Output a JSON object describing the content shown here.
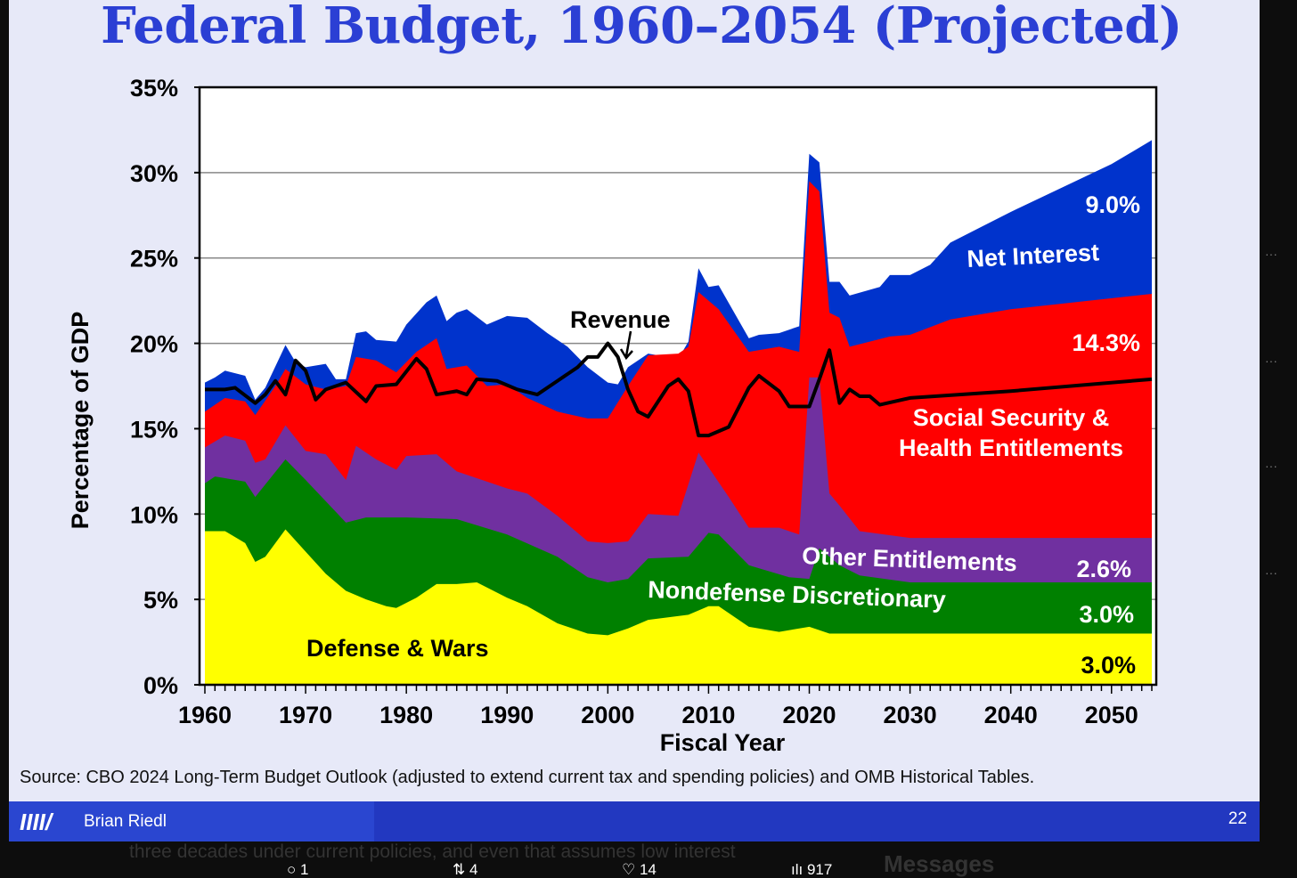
{
  "slide": {
    "title": "Federal Budget, 1960–2054 (Projected)",
    "source": "Source: CBO 2024 Long-Term Budget Outlook (adjusted to extend current tax and spending policies) and OMB Historical Tables.",
    "footer_logo": "IIII/",
    "footer_author": "Brian Riedl",
    "page_number": "22"
  },
  "tweet": {
    "text_fragment": "three decades under current policies, and even that assumes low interest",
    "reply_count": "1",
    "retweet_count": "4",
    "like_count": "14",
    "view_count": "917",
    "messages_label": "Messages"
  },
  "chart_data": {
    "type": "area",
    "stacked": true,
    "title": "Federal Budget, 1960–2054 (Projected)",
    "xlabel": "Fiscal Year",
    "ylabel": "Percentage of GDP",
    "xlim": [
      1960,
      2054
    ],
    "ylim": [
      0,
      35
    ],
    "yticks": [
      "0%",
      "5%",
      "10%",
      "15%",
      "20%",
      "25%",
      "30%",
      "35%"
    ],
    "ytick_values": [
      0,
      5,
      10,
      15,
      20,
      25,
      30,
      35
    ],
    "xticks": [
      "1960",
      "1970",
      "1980",
      "1990",
      "2000",
      "2010",
      "2020",
      "2030",
      "2040",
      "2050"
    ],
    "xtick_values": [
      1960,
      1970,
      1980,
      1990,
      2000,
      2010,
      2020,
      2030,
      2040,
      2050
    ],
    "grid": true,
    "series": [
      {
        "name": "Net Interest",
        "color": "#0033cc",
        "end_label": "9.0%",
        "cumulative_top": {
          "x": [
            1960,
            1961,
            1962,
            1964,
            1965,
            1966,
            1968,
            1969,
            1970,
            1972,
            1973,
            1974,
            1975,
            1976,
            1977,
            1979,
            1980,
            1982,
            1983,
            1984,
            1985,
            1986,
            1988,
            1990,
            1992,
            1994,
            1996,
            1998,
            2000,
            2001,
            2002,
            2004,
            2007,
            2008,
            2009,
            2010,
            2011,
            2014,
            2015,
            2017,
            2019,
            2020,
            2021,
            2022,
            2023,
            2024,
            2027,
            2028,
            2030,
            2032,
            2034,
            2040,
            2050,
            2054
          ],
          "y": [
            17.7,
            18.0,
            18.4,
            18.1,
            16.7,
            17.4,
            19.9,
            18.9,
            18.6,
            18.8,
            17.9,
            17.9,
            20.6,
            20.7,
            20.2,
            20.1,
            21.1,
            22.4,
            22.8,
            21.3,
            21.8,
            22.0,
            21.1,
            21.6,
            21.5,
            20.6,
            19.8,
            18.6,
            17.7,
            17.6,
            18.6,
            19.4,
            19.1,
            20.1,
            24.4,
            23.3,
            23.4,
            20.3,
            20.5,
            20.6,
            21.0,
            31.1,
            30.6,
            23.6,
            23.6,
            22.8,
            23.3,
            24.0,
            24.0,
            24.6,
            25.9,
            27.7,
            30.5,
            31.9
          ]
        }
      },
      {
        "name": "Social Security & Health Entitlements",
        "color": "#ff0000",
        "end_label": "14.3%",
        "cumulative_top": {
          "x": [
            1960,
            1962,
            1964,
            1965,
            1967,
            1968,
            1970,
            1972,
            1974,
            1975,
            1977,
            1979,
            1981,
            1983,
            1984,
            1986,
            1988,
            1990,
            1992,
            1995,
            1998,
            2000,
            2002,
            2004,
            2007,
            2008,
            2009,
            2011,
            2014,
            2017,
            2019,
            2020,
            2021,
            2022,
            2023,
            2024,
            2028,
            2030,
            2034,
            2040,
            2054
          ],
          "y": [
            16.0,
            16.8,
            16.6,
            15.8,
            17.5,
            18.5,
            17.6,
            17.3,
            17.5,
            19.2,
            19.0,
            18.3,
            19.5,
            20.3,
            18.5,
            18.7,
            17.5,
            17.6,
            16.8,
            16.0,
            15.6,
            15.6,
            17.5,
            19.3,
            19.4,
            19.8,
            23.0,
            22.0,
            19.5,
            19.8,
            19.5,
            29.5,
            28.9,
            21.8,
            21.5,
            19.8,
            20.4,
            20.5,
            21.4,
            22.0,
            22.9
          ]
        }
      },
      {
        "name": "Other Entitlements",
        "color": "#7030a0",
        "end_label": "2.6%",
        "cumulative_top": {
          "x": [
            1960,
            1962,
            1964,
            1965,
            1966,
            1968,
            1970,
            1972,
            1974,
            1975,
            1977,
            1979,
            1980,
            1983,
            1985,
            1990,
            1992,
            1995,
            1998,
            2000,
            2002,
            2004,
            2007,
            2009,
            2012,
            2014,
            2017,
            2019,
            2020,
            2021,
            2022,
            2023,
            2025,
            2030,
            2054
          ],
          "y": [
            13.9,
            14.6,
            14.3,
            13.0,
            13.2,
            15.2,
            13.7,
            13.5,
            12.0,
            14.0,
            13.2,
            12.6,
            13.4,
            13.5,
            12.5,
            11.5,
            11.2,
            9.9,
            8.4,
            8.3,
            8.4,
            10.0,
            9.9,
            13.6,
            11.0,
            9.2,
            9.2,
            8.8,
            18.0,
            18.0,
            11.2,
            10.5,
            9.0,
            8.6,
            8.6
          ]
        }
      },
      {
        "name": "Nondefense Discretionary",
        "color": "#008000",
        "end_label": "3.0%",
        "cumulative_top": {
          "x": [
            1960,
            1961,
            1964,
            1965,
            1968,
            1970,
            1974,
            1976,
            1980,
            1985,
            1990,
            1995,
            1998,
            2000,
            2002,
            2004,
            2008,
            2010,
            2011,
            2014,
            2018,
            2020,
            2021,
            2023,
            2025,
            2030,
            2054
          ],
          "y": [
            11.8,
            12.2,
            11.9,
            11.0,
            13.2,
            12.0,
            9.5,
            9.8,
            9.8,
            9.7,
            8.8,
            7.5,
            6.3,
            6.0,
            6.2,
            7.4,
            7.5,
            8.9,
            8.8,
            7.0,
            6.3,
            6.2,
            8.0,
            7.0,
            6.4,
            6.0,
            6.0
          ]
        }
      },
      {
        "name": "Defense & Wars",
        "color": "#ffff00",
        "end_label": "3.0%",
        "cumulative_top": {
          "x": [
            1960,
            1962,
            1964,
            1965,
            1966,
            1968,
            1970,
            1972,
            1974,
            1976,
            1978,
            1979,
            1981,
            1983,
            1985,
            1987,
            1990,
            1992,
            1995,
            1998,
            2000,
            2002,
            2004,
            2008,
            2010,
            2011,
            2014,
            2017,
            2020,
            2022,
            2054
          ],
          "y": [
            9.0,
            9.0,
            8.3,
            7.2,
            7.5,
            9.1,
            7.8,
            6.5,
            5.5,
            5.0,
            4.6,
            4.5,
            5.1,
            5.9,
            5.9,
            6.0,
            5.1,
            4.6,
            3.6,
            3.0,
            2.9,
            3.3,
            3.8,
            4.1,
            4.6,
            4.6,
            3.4,
            3.1,
            3.4,
            3.0,
            3.0
          ]
        }
      }
    ],
    "line": {
      "name": "Revenue",
      "color": "#000000",
      "x": [
        1960,
        1962,
        1963,
        1965,
        1966,
        1967,
        1968,
        1969,
        1970,
        1971,
        1972,
        1974,
        1976,
        1977,
        1979,
        1981,
        1982,
        1983,
        1985,
        1986,
        1987,
        1989,
        1991,
        1993,
        1995,
        1997,
        1998,
        1999,
        2000,
        2001,
        2002,
        2003,
        2004,
        2006,
        2007,
        2008,
        2009,
        2010,
        2012,
        2014,
        2015,
        2017,
        2018,
        2019,
        2020,
        2021,
        2022,
        2023,
        2024,
        2025,
        2026,
        2027,
        2030,
        2040,
        2054
      ],
      "y": [
        17.3,
        17.3,
        17.4,
        16.5,
        17.0,
        17.8,
        17.0,
        19.0,
        18.4,
        16.7,
        17.3,
        17.7,
        16.6,
        17.5,
        17.6,
        19.1,
        18.5,
        17.0,
        17.2,
        17.0,
        17.9,
        17.8,
        17.3,
        17.0,
        17.8,
        18.6,
        19.2,
        19.2,
        20.0,
        19.2,
        17.3,
        16.0,
        15.7,
        17.5,
        17.9,
        17.2,
        14.6,
        14.6,
        15.1,
        17.4,
        18.1,
        17.2,
        16.3,
        16.3,
        16.3,
        17.9,
        19.6,
        16.5,
        17.3,
        16.9,
        16.9,
        16.4,
        16.8,
        17.2,
        17.9
      ]
    },
    "annotations": {
      "revenue": "Revenue",
      "net_interest": "Net Interest",
      "ss_line1": "Social Security &",
      "ss_line2": "Health Entitlements",
      "other": "Other Entitlements",
      "nondefense": "Nondefense Discretionary",
      "defense": "Defense & Wars"
    }
  }
}
